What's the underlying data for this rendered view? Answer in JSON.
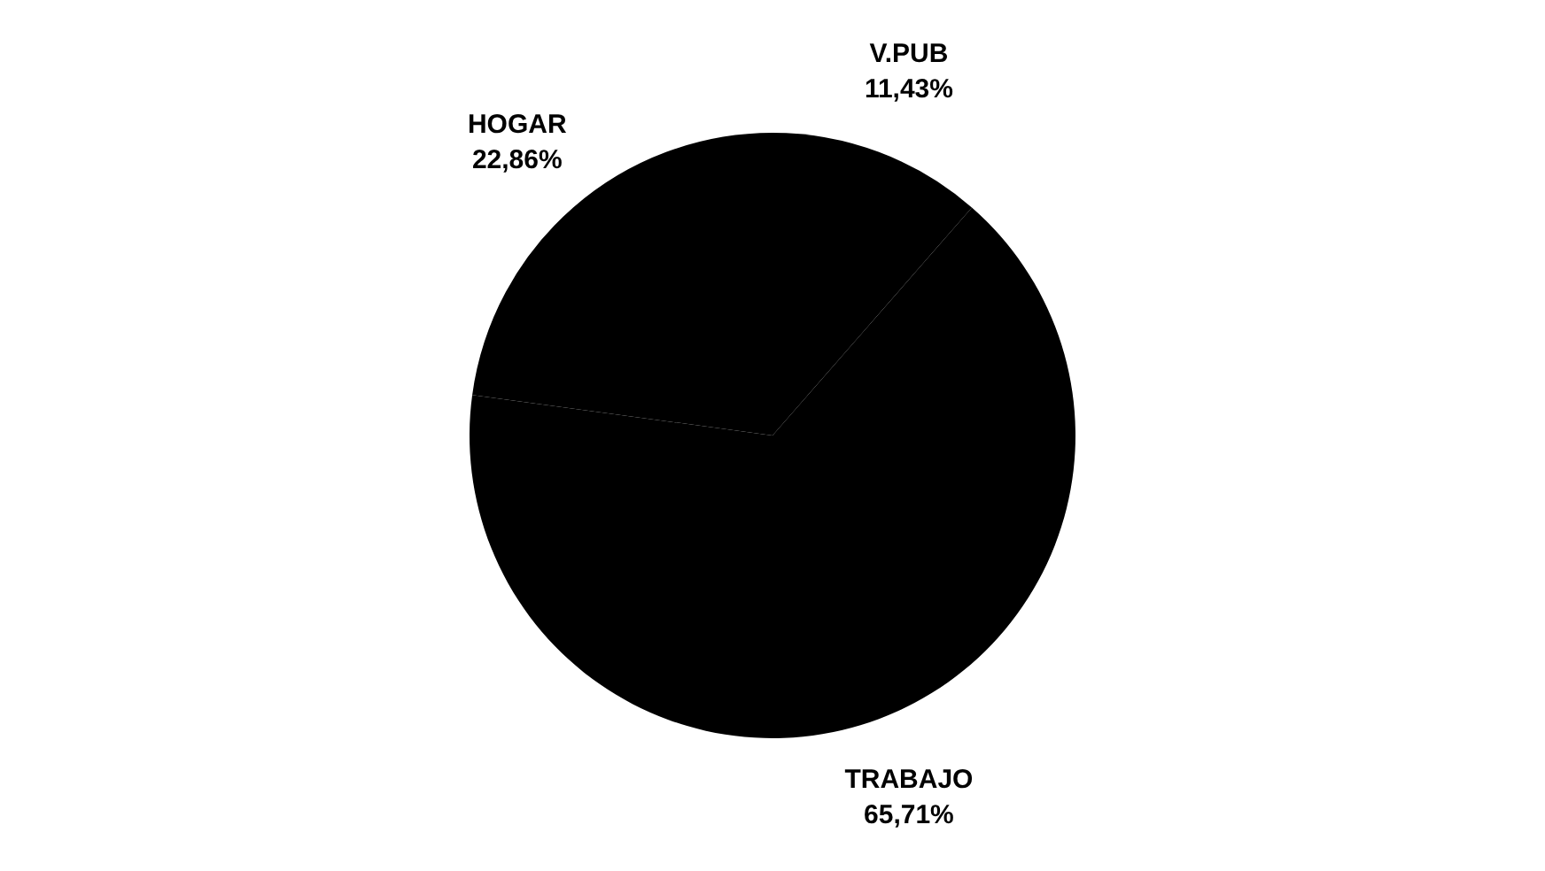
{
  "chart_data": {
    "type": "pie",
    "categories": [
      "V.PUB",
      "TRABAJO",
      "HOGAR"
    ],
    "values": [
      11.43,
      65.71,
      22.86
    ],
    "colors": [
      "#000000",
      "#000000",
      "#000000"
    ],
    "value_labels": [
      "11,43%",
      "65,71%",
      "22,86%"
    ],
    "legend": false
  }
}
